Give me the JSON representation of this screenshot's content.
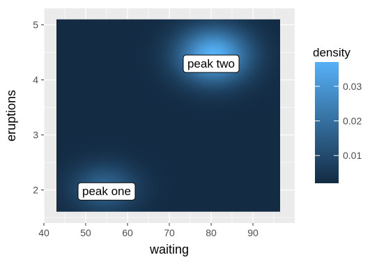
{
  "chart_data": {
    "type": "heatmap",
    "title": "",
    "xlabel": "waiting",
    "ylabel": "eruptions",
    "xlim": [
      40,
      100
    ],
    "ylim": [
      1.4,
      5.3
    ],
    "x_ticks": [
      40,
      50,
      60,
      70,
      80,
      90
    ],
    "y_ticks": [
      2,
      3,
      4,
      5
    ],
    "x_tick_labels": [
      "40",
      "50",
      "60",
      "70",
      "80",
      "90"
    ],
    "y_tick_labels": [
      "2",
      "3",
      "4",
      "5"
    ],
    "data_extent": {
      "x": [
        43,
        96.5
      ],
      "y": [
        1.6,
        5.1
      ]
    },
    "grid": true,
    "legend": {
      "title": "density",
      "placement": "right",
      "range": [
        0.002,
        0.037
      ],
      "ticks": [
        0.01,
        0.02,
        0.03
      ],
      "tick_labels": [
        "0.01",
        "0.02",
        "0.03"
      ],
      "low_color": "#132B43",
      "high_color": "#56B1F7"
    },
    "peaks": [
      {
        "x": 54.5,
        "y": 2.05,
        "sx": 5.5,
        "sy": 0.3,
        "density": 0.017
      },
      {
        "x": 80.5,
        "y": 4.45,
        "sx": 6.0,
        "sy": 0.35,
        "density": 0.037
      }
    ],
    "annotations": [
      {
        "text": "peak one",
        "x": 55,
        "y": 1.98
      },
      {
        "text": "peak two",
        "x": 80,
        "y": 4.3
      }
    ]
  },
  "colors": {
    "panel_background": "#EBEBEB",
    "grid_line": "#FFFFFF",
    "axis_text": "#4D4D4D",
    "axis_title": "#000000",
    "annotation_fill": "#FFFFFF",
    "annotation_border": "#000000"
  }
}
